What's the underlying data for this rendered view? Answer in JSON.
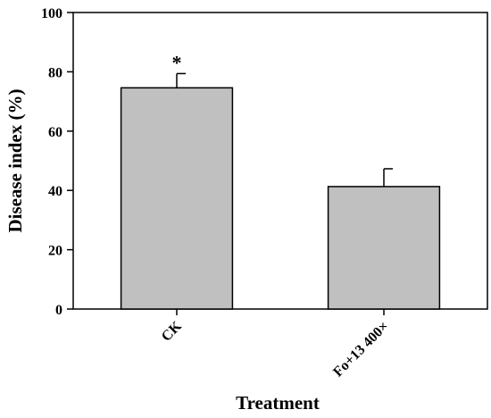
{
  "chart_data": {
    "type": "bar",
    "title": "",
    "xlabel": "Treatment",
    "ylabel": "Disease index (%)",
    "ylim": [
      0,
      100
    ],
    "yticks": [
      0,
      20,
      40,
      60,
      80,
      100
    ],
    "categories": [
      "CK",
      "Fo+13 400×"
    ],
    "values": [
      74.6,
      41.3
    ],
    "error": [
      4.8,
      6.0
    ],
    "annotations": [
      "*",
      ""
    ],
    "bar_color": "#c0c0c0",
    "grid": false,
    "legend": "none"
  }
}
